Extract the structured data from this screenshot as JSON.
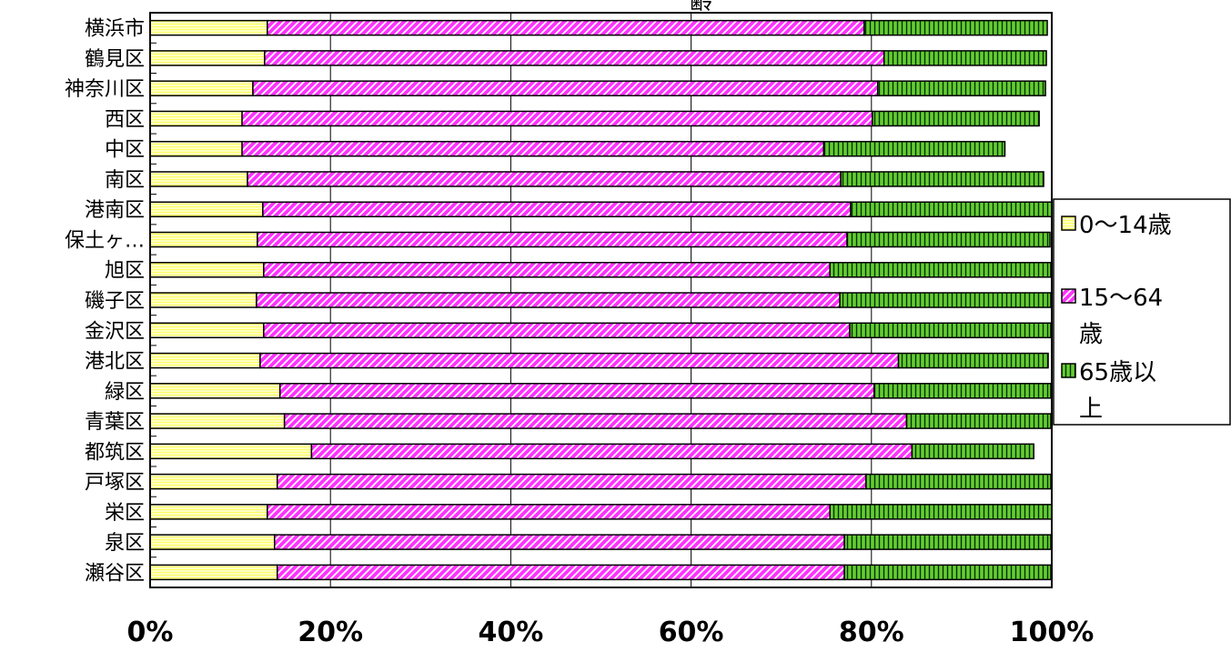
{
  "chart_data": {
    "type": "bar",
    "orientation": "horizontal",
    "stacked": "percent",
    "title": "齢",
    "categories": [
      "横浜市",
      "鶴見区",
      "神奈川区",
      "西区",
      "中区",
      "南区",
      "港南区",
      "保土ヶ…",
      "旭区",
      "磯子区",
      "金沢区",
      "港北区",
      "緑区",
      "青葉区",
      "都筑区",
      "戸塚区",
      "栄区",
      "泉区",
      "瀬谷区"
    ],
    "series": [
      {
        "name": "0～14歳",
        "values": [
          13.0,
          12.7,
          11.4,
          10.2,
          10.2,
          10.8,
          12.5,
          11.9,
          12.6,
          11.8,
          12.6,
          12.2,
          14.4,
          14.9,
          17.9,
          14.1,
          13.0,
          13.8,
          14.1
        ]
      },
      {
        "name": "15～64歳",
        "values": [
          66.2,
          68.7,
          69.3,
          69.9,
          64.5,
          65.8,
          65.2,
          65.4,
          62.8,
          64.7,
          65.0,
          70.8,
          65.9,
          69.0,
          66.6,
          65.3,
          62.4,
          63.2,
          62.9
        ]
      },
      {
        "name": "65歳以上",
        "values": [
          20.3,
          18.0,
          18.6,
          18.5,
          20.1,
          22.5,
          22.3,
          22.5,
          24.5,
          23.4,
          22.3,
          16.6,
          19.6,
          16.0,
          13.5,
          20.5,
          24.6,
          22.9,
          22.9
        ]
      }
    ],
    "xlim": [
      0,
      100
    ],
    "xticks": [
      "0%",
      "20%",
      "40%",
      "60%",
      "80%",
      "100%"
    ],
    "grid": true,
    "legend_position": "right",
    "colors": {
      "yellow_fill": "#ffff66",
      "yellow_stripe": "#ffffff",
      "magenta_fill": "#ff33ff",
      "magenta_stripe": "#ffffff",
      "green_fill": "#66cc33",
      "green_stripe": "#003300",
      "border": "#000000",
      "grid": "#000000"
    }
  }
}
